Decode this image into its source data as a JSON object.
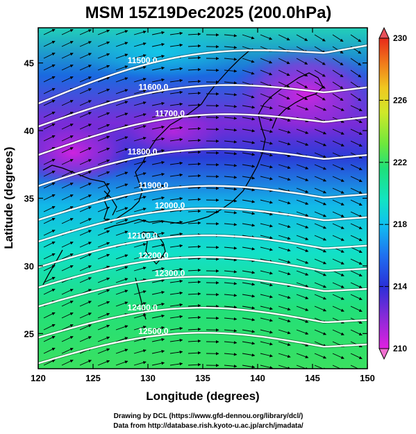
{
  "chart_data": {
    "type": "heatmap",
    "title": "MSM 15Z19Dec2025 (200.0hPa)",
    "xlabel": "Longitude (degrees)",
    "ylabel": "Latitude  (degrees)",
    "xlim": [
      120,
      150
    ],
    "ylim": [
      22.4,
      47.6
    ],
    "x_ticks": [
      120,
      125,
      130,
      135,
      140,
      145,
      150
    ],
    "y_ticks": [
      25,
      30,
      35,
      40,
      45
    ],
    "x_tick_labels": [
      "120",
      "125",
      "130",
      "135",
      "140",
      "145",
      "150"
    ],
    "y_tick_labels": [
      "25",
      "30",
      "35",
      "40",
      "45"
    ],
    "colorbar": {
      "min": 210,
      "max": 230,
      "ticks": [
        210,
        214,
        218,
        222,
        226,
        230
      ],
      "tick_labels": [
        "210",
        "214",
        "218",
        "222",
        "226",
        "230"
      ],
      "colors": [
        "#e020e0",
        "#8a2ad8",
        "#3a2cd8",
        "#1f5ff0",
        "#10b8f0",
        "#12e4c2",
        "#1fe07a",
        "#6ee83c",
        "#cfe82a",
        "#f0c820",
        "#f07a1a",
        "#e82a1a"
      ]
    },
    "contours": [
      {
        "label": "11500.0",
        "lat0": 42.0,
        "lat1": 46.3
      },
      {
        "label": "11600.0",
        "lat0": 40.3,
        "lat1": 43.2
      },
      {
        "label": "11700.0",
        "lat0": 38.2,
        "lat1": 41.0
      },
      {
        "label": "11800.0",
        "lat0": 35.9,
        "lat1": 38.2
      },
      {
        "label": "11900.0",
        "lat0": 33.4,
        "lat1": 35.3
      },
      {
        "label": "12000.0",
        "lat0": 31.8,
        "lat1": 33.6
      },
      {
        "label": "12100.0",
        "lat0": 29.9,
        "lat1": 31.5
      },
      {
        "label": "12200.0",
        "lat0": 28.4,
        "lat1": 29.8
      },
      {
        "label": "12300.0",
        "lat0": 27.0,
        "lat1": 28.3
      },
      {
        "label": "12400.0",
        "lat0": 24.7,
        "lat1": 26.0
      },
      {
        "label": "12500.0",
        "lat0": 22.8,
        "lat1": 24.2
      }
    ]
  },
  "credits": {
    "line1": "Drawing by DCL (https://www.gfd-dennou.org/library/dcl/)",
    "line2": "Data from http://database.rish.kyoto-u.ac.jp/arch/jmadata/"
  }
}
